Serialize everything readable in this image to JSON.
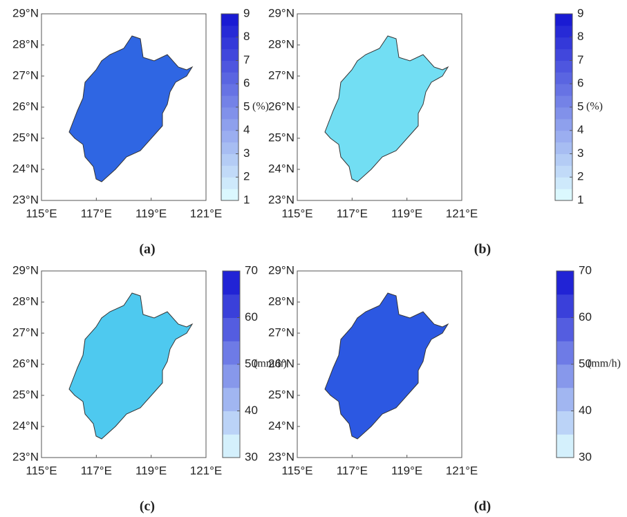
{
  "panels": [
    {
      "caption": "(a)",
      "unit": "(%)",
      "xticks": [
        {
          "value": 115,
          "label": "115°E"
        },
        {
          "value": 117,
          "label": "117°E"
        },
        {
          "value": 119,
          "label": "119°E"
        },
        {
          "value": 121,
          "label": "121°E"
        }
      ],
      "yticks": [
        {
          "value": 23,
          "label": "23°N"
        },
        {
          "value": 24,
          "label": "24°N"
        },
        {
          "value": 25,
          "label": "25°N"
        },
        {
          "value": 26,
          "label": "26°N"
        },
        {
          "value": 27,
          "label": "27°N"
        },
        {
          "value": 28,
          "label": "28°N"
        },
        {
          "value": 29,
          "label": "29°N"
        }
      ],
      "xlim": [
        115,
        121
      ],
      "ylim": [
        23,
        29
      ],
      "colorbar_lim": [
        1,
        9
      ],
      "colorbar_ticks": [
        1,
        2,
        3,
        4,
        5,
        6,
        7,
        8,
        9
      ]
    },
    {
      "caption": "(b)",
      "unit": "(%)",
      "xticks": [
        {
          "value": 115,
          "label": "115°E"
        },
        {
          "value": 117,
          "label": "117°E"
        },
        {
          "value": 119,
          "label": "119°E"
        },
        {
          "value": 121,
          "label": "121°E"
        }
      ],
      "yticks": [
        {
          "value": 23,
          "label": "23°N"
        },
        {
          "value": 24,
          "label": "24°N"
        },
        {
          "value": 25,
          "label": "25°N"
        },
        {
          "value": 26,
          "label": "26°N"
        },
        {
          "value": 27,
          "label": "27°N"
        },
        {
          "value": 28,
          "label": "28°N"
        },
        {
          "value": 29,
          "label": "29°N"
        }
      ],
      "xlim": [
        115,
        121
      ],
      "ylim": [
        23,
        29
      ],
      "colorbar_lim": [
        1,
        9
      ],
      "colorbar_ticks": [
        1,
        2,
        3,
        4,
        5,
        6,
        7,
        8,
        9
      ]
    },
    {
      "caption": "(c)",
      "unit": "(mm/h)",
      "xticks": [
        {
          "value": 115,
          "label": "115°E"
        },
        {
          "value": 117,
          "label": "117°E"
        },
        {
          "value": 119,
          "label": "119°E"
        },
        {
          "value": 121,
          "label": "121°E"
        }
      ],
      "yticks": [
        {
          "value": 23,
          "label": "23°N"
        },
        {
          "value": 24,
          "label": "24°N"
        },
        {
          "value": 25,
          "label": "25°N"
        },
        {
          "value": 26,
          "label": "26°N"
        },
        {
          "value": 27,
          "label": "27°N"
        },
        {
          "value": 28,
          "label": "28°N"
        },
        {
          "value": 29,
          "label": "29°N"
        }
      ],
      "xlim": [
        115,
        121
      ],
      "ylim": [
        23,
        29
      ],
      "colorbar_lim": [
        30,
        70
      ],
      "colorbar_ticks": [
        30,
        40,
        50,
        60,
        70
      ]
    },
    {
      "caption": "(d)",
      "unit": "(mm/h)",
      "xticks": [
        {
          "value": 115,
          "label": "115°E"
        },
        {
          "value": 117,
          "label": "117°E"
        },
        {
          "value": 119,
          "label": "119°E"
        },
        {
          "value": 121,
          "label": "121°E"
        }
      ],
      "yticks": [
        {
          "value": 23,
          "label": "23°N"
        },
        {
          "value": 24,
          "label": "24°N"
        },
        {
          "value": 25,
          "label": "25°N"
        },
        {
          "value": 26,
          "label": "26°N"
        },
        {
          "value": 27,
          "label": "27°N"
        },
        {
          "value": 28,
          "label": "28°N"
        },
        {
          "value": 29,
          "label": "29°N"
        }
      ],
      "xlim": [
        115,
        121
      ],
      "ylim": [
        23,
        29
      ],
      "colorbar_lim": [
        30,
        70
      ],
      "colorbar_ticks": [
        30,
        40,
        50,
        60,
        70
      ]
    }
  ]
}
